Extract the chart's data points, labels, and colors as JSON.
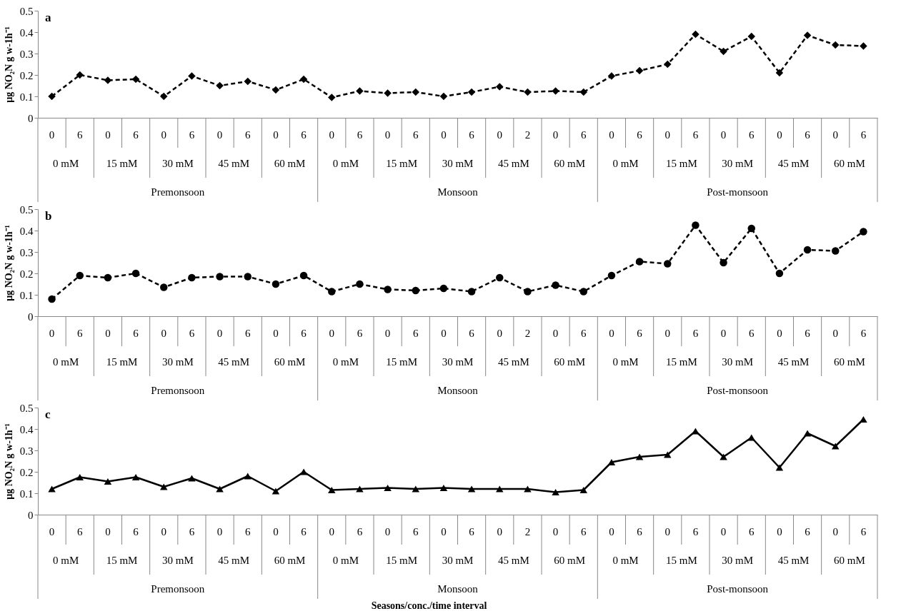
{
  "chart_data": [
    {
      "type": "line",
      "title": "a",
      "ylabel": "µg NO₂N g w-1h⁻¹",
      "marker": "diamond",
      "line_style": "dashed",
      "categories": [
        "0",
        "6",
        "0",
        "6",
        "0",
        "6",
        "0",
        "6",
        "0",
        "6",
        "0",
        "6",
        "0",
        "6",
        "0",
        "6",
        "0",
        "2",
        "0",
        "6",
        "0",
        "6",
        "0",
        "6",
        "0",
        "6",
        "0",
        "6",
        "0",
        "6"
      ],
      "series": [
        {
          "color": "#000000",
          "values": [
            0.1,
            0.2,
            0.175,
            0.18,
            0.1,
            0.195,
            0.15,
            0.17,
            0.13,
            0.18,
            0.095,
            0.125,
            0.115,
            0.12,
            0.1,
            0.12,
            0.145,
            0.12,
            0.125,
            0.12,
            0.195,
            0.22,
            0.25,
            0.39,
            0.31,
            0.38,
            0.21,
            0.385,
            0.34,
            0.335
          ]
        }
      ],
      "ylim": [
        0,
        0.5
      ],
      "yticks": [
        0,
        0.1,
        0.2,
        0.3,
        0.4,
        0.5
      ],
      "annotations": [
        "0 mM",
        "15 mM",
        "30  mM",
        "45 mM",
        "60 mM",
        "0 mM",
        "15 mM",
        "30  mM",
        "45 mM",
        "60 mM",
        "0 mM",
        "15 mM",
        "30  mM",
        "45 mM",
        "60 mM",
        "Premonsoon",
        "Monsoon",
        "Post-monsoon"
      ]
    },
    {
      "type": "line",
      "title": "b",
      "ylabel": "µg NO₂N g w-1h⁻¹",
      "marker": "circle",
      "line_style": "dashed",
      "categories": [
        "0",
        "6",
        "0",
        "6",
        "0",
        "6",
        "0",
        "6",
        "0",
        "6",
        "0",
        "6",
        "0",
        "6",
        "0",
        "6",
        "0",
        "2",
        "0",
        "6",
        "0",
        "6",
        "0",
        "6",
        "0",
        "6",
        "0",
        "6",
        "0",
        "6"
      ],
      "series": [
        {
          "color": "#000000",
          "values": [
            0.08,
            0.19,
            0.18,
            0.2,
            0.135,
            0.18,
            0.185,
            0.185,
            0.15,
            0.19,
            0.115,
            0.15,
            0.125,
            0.12,
            0.13,
            0.115,
            0.18,
            0.115,
            0.145,
            0.115,
            0.19,
            0.255,
            0.245,
            0.425,
            0.25,
            0.41,
            0.2,
            0.31,
            0.305,
            0.395
          ]
        }
      ],
      "ylim": [
        0,
        0.5
      ],
      "yticks": [
        0,
        0.1,
        0.2,
        0.3,
        0.4,
        0.5
      ],
      "annotations": [
        "0 mM",
        "15 mM",
        "30  mM",
        "45 mM",
        "60 mM",
        "0 mM",
        "15 mM",
        "30  mM",
        "45 mM",
        "60 mM",
        "0 mM",
        "15 mM",
        "30  mM",
        "45 mM",
        "60 mM",
        "Premonsoon",
        "Monsoon",
        "Post-monsoon"
      ]
    },
    {
      "type": "line",
      "title": "c",
      "ylabel": "µg NO₂N g w-1h⁻¹",
      "xlabel": "Seasons/conc./time interval",
      "marker": "triangle",
      "line_style": "solid",
      "categories": [
        "0",
        "6",
        "0",
        "6",
        "0",
        "6",
        "0",
        "6",
        "0",
        "6",
        "0",
        "6",
        "0",
        "6",
        "0",
        "6",
        "0",
        "2",
        "0",
        "6",
        "0",
        "6",
        "0",
        "6",
        "0",
        "6",
        "0",
        "6",
        "0",
        "6"
      ],
      "series": [
        {
          "color": "#000000",
          "values": [
            0.12,
            0.175,
            0.155,
            0.175,
            0.13,
            0.17,
            0.12,
            0.18,
            0.11,
            0.2,
            0.115,
            0.12,
            0.125,
            0.12,
            0.125,
            0.12,
            0.12,
            0.12,
            0.105,
            0.115,
            0.245,
            0.27,
            0.28,
            0.39,
            0.27,
            0.36,
            0.22,
            0.38,
            0.32,
            0.445
          ]
        }
      ],
      "ylim": [
        0,
        0.5
      ],
      "yticks": [
        0,
        0.1,
        0.2,
        0.3,
        0.4,
        0.5
      ],
      "annotations": [
        "0 mM",
        "15 mM",
        "30  mM",
        "45 mM",
        "60 mM",
        "0 mM",
        "15 mM",
        "30  mM",
        "45 mM",
        "60 mM",
        "0 mM",
        "15 mM",
        "30  mM",
        "45 mM",
        "60 mM",
        "Premonsoon",
        "Monsoon",
        "Post-monsoon"
      ]
    }
  ]
}
